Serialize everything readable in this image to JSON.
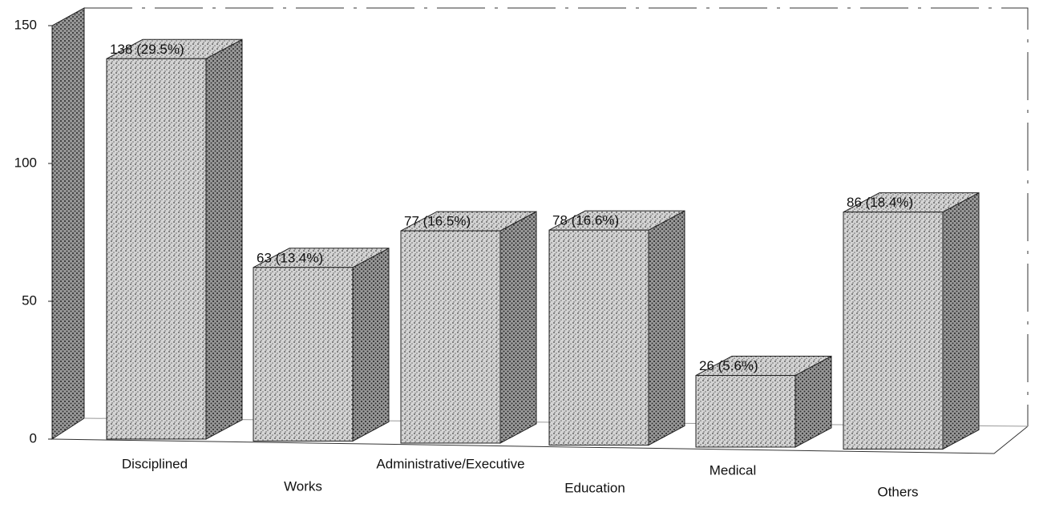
{
  "chart_data": {
    "type": "bar",
    "categories": [
      "Disciplined",
      "Works",
      "Administrative/Executive",
      "Education",
      "Medical",
      "Others"
    ],
    "values": [
      138,
      63,
      77,
      78,
      26,
      86
    ],
    "value_labels": [
      "138 (29.5%)",
      "63 (13.4%)",
      "77 (16.5%)",
      "78 (16.6%)",
      "26 (5.6%)",
      "86 (18.4%)"
    ],
    "color": "#b8b8b8",
    "ylim": [
      0,
      150
    ],
    "yticks": [
      0,
      50,
      100,
      150
    ]
  }
}
